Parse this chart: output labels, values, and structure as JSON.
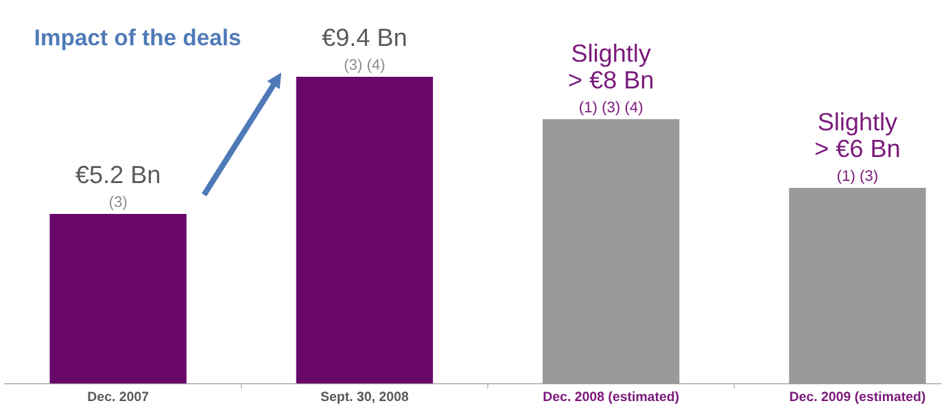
{
  "chart_data": {
    "type": "bar",
    "categories": [
      "Dec. 2007",
      "Sept. 30, 2008",
      "Dec. 2008 (estimated)",
      "Dec. 2009 (estimated)"
    ],
    "values": [
      5.2,
      9.4,
      8.1,
      6.0
    ],
    "colors": [
      "#6a086a",
      "#6a086a",
      "#9a9a9a",
      "#9a9a9a"
    ],
    "value_labels": [
      "€5.2 Bn",
      "€9.4 Bn",
      "Slightly\n> €8 Bn",
      "Slightly\n> €6 Bn"
    ],
    "annotations": [
      {
        "text": "(3)",
        "x": "Dec. 2007",
        "y": 5.2
      },
      {
        "text": "(3) (4)",
        "x": "Sept. 30, 2008",
        "y": 9.4
      },
      {
        "text": "(1) (3) (4)",
        "x": "Dec. 2008 (estimated)",
        "y": 8.1
      },
      {
        "text": "(1) (3)",
        "x": "Dec. 2009 (estimated)",
        "y": 6.0
      },
      "Impact of the deals"
    ],
    "grid": false,
    "legend": false
  }
}
